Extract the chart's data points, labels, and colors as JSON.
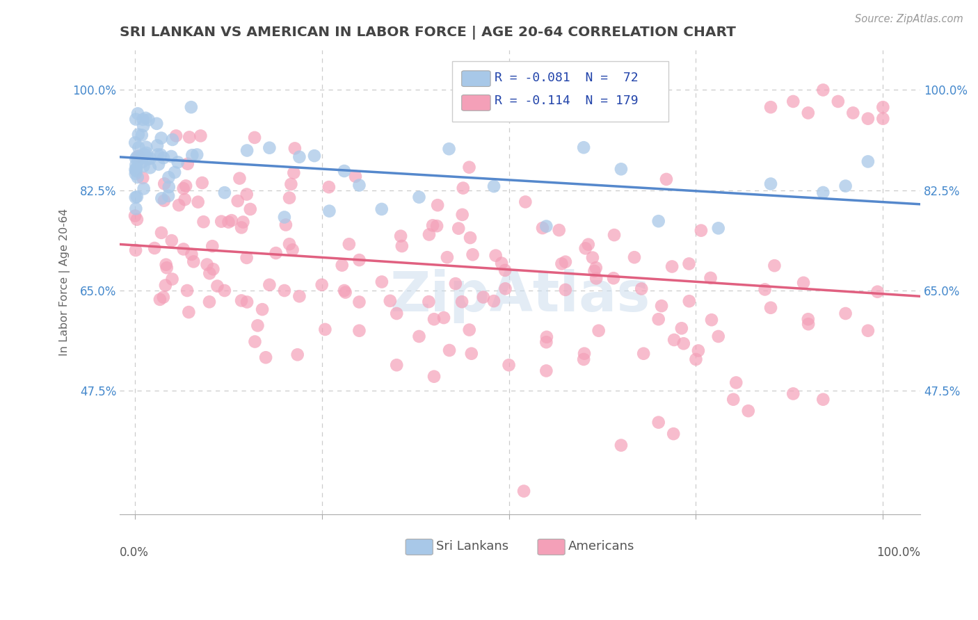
{
  "title": "SRI LANKAN VS AMERICAN IN LABOR FORCE | AGE 20-64 CORRELATION CHART",
  "source": "Source: ZipAtlas.com",
  "ylabel": "In Labor Force | Age 20-64",
  "color_sri": "#a8c8e8",
  "color_ame": "#f4a0b8",
  "line_color_sri": "#5588cc",
  "line_color_ame": "#e06080",
  "background": "#ffffff",
  "grid_color": "#cccccc",
  "title_color": "#444444",
  "source_color": "#999999",
  "watermark_color": "#dddddd",
  "ytick_color": "#4488cc",
  "xtick_color": "#555555",
  "legend_text_color": "#2244aa"
}
